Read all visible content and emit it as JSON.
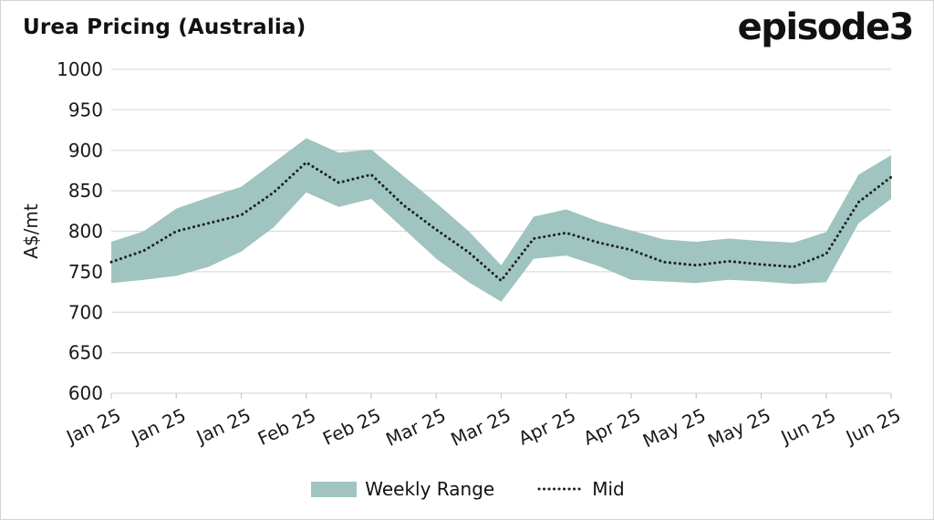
{
  "header": {
    "title": "Urea Pricing (Australia)",
    "logo_text": "episode3"
  },
  "legend": {
    "range_label": "Weekly Range",
    "mid_label": "Mid"
  },
  "colors": {
    "band": "#a0c4c0",
    "mid_line": "#1f1f1f",
    "grid": "#dcdcdc",
    "axis": "#c9c9c9",
    "text": "#1a1a1a",
    "border": "#d4d4d4",
    "background": "#ffffff"
  },
  "chart_data": {
    "type": "area",
    "title": "Urea Pricing (Australia)",
    "xlabel": "",
    "ylabel": "A$/mt",
    "ylim": [
      600,
      1000
    ],
    "yticks": [
      600,
      650,
      700,
      750,
      800,
      850,
      900,
      950,
      1000
    ],
    "grid": true,
    "legend_position": "bottom",
    "x_tick_labels": [
      "Jan 25",
      "Jan 25",
      "Jan 25",
      "Feb 25",
      "Feb 25",
      "Mar 25",
      "Mar 25",
      "Apr 25",
      "Apr 25",
      "May 25",
      "May 25",
      "Jun 25",
      "Jun 25"
    ],
    "points_per_tick": 2,
    "series": [
      {
        "name": "Weekly Range",
        "type": "band",
        "low": [
          736,
          740,
          745,
          756,
          775,
          805,
          848,
          830,
          840,
          803,
          766,
          737,
          713,
          766,
          770,
          757,
          740,
          738,
          736,
          740,
          738,
          735,
          737,
          810,
          840
        ],
        "high": [
          787,
          800,
          828,
          842,
          855,
          885,
          915,
          897,
          901,
          868,
          835,
          800,
          758,
          818,
          827,
          812,
          801,
          790,
          787,
          791,
          788,
          786,
          799,
          870,
          894
        ]
      },
      {
        "name": "Mid",
        "type": "dotted-line",
        "values": [
          762,
          776,
          800,
          810,
          820,
          848,
          885,
          860,
          870,
          832,
          802,
          774,
          739,
          791,
          798,
          786,
          777,
          762,
          758,
          763,
          759,
          756,
          772,
          836,
          867
        ]
      }
    ]
  }
}
